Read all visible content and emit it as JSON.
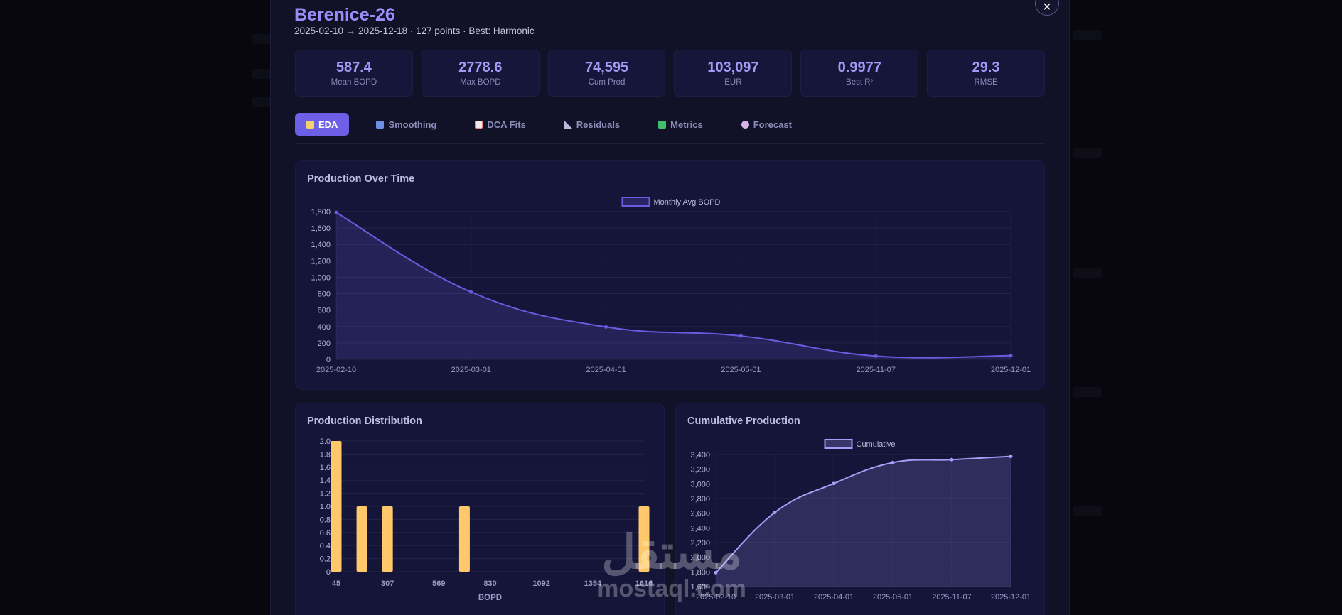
{
  "well": {
    "name": "Berenice-26",
    "summary": "2025-02-10 → 2025-12-18 · 127 points · Best: Harmonic"
  },
  "stats": [
    {
      "value": "587.4",
      "label": "Mean BOPD"
    },
    {
      "value": "2778.6",
      "label": "Max BOPD"
    },
    {
      "value": "74,595",
      "label": "Cum Prod"
    },
    {
      "value": "103,097",
      "label": "EUR"
    },
    {
      "value": "0.9977",
      "label": "Best R²"
    },
    {
      "value": "29.3",
      "label": "RMSE"
    }
  ],
  "tabs": [
    {
      "label": "EDA",
      "icon": "notepad-icon",
      "icon_color": "#f2d36b",
      "active": true
    },
    {
      "label": "Smoothing",
      "icon": "shuffle-icon",
      "icon_color": "#6f8ee8",
      "active": false
    },
    {
      "label": "DCA Fits",
      "icon": "chart-down-icon",
      "icon_color": "#e88a8a",
      "active": false
    },
    {
      "label": "Residuals",
      "icon": "triangle-ruler-icon",
      "icon_color": "#b9b9d9",
      "active": false
    },
    {
      "label": "Metrics",
      "icon": "checkmark-icon",
      "icon_color": "#3fbf6a",
      "active": false
    },
    {
      "label": "Forecast",
      "icon": "crystal-ball-icon",
      "icon_color": "#d7b3e8",
      "active": false
    }
  ],
  "colors": {
    "accent": "#6d5fe6",
    "line": "#6a5ce0",
    "cumulative_line": "#a99cf7",
    "bar": "#ffc96b"
  },
  "close_glyph": "×",
  "watermark": {
    "arabic": "مستقل",
    "latin": "mostaql.com"
  },
  "chart_data": [
    {
      "type": "area",
      "title": "Production Over Time",
      "legend": "Monthly Avg BOPD",
      "legend_position": "top-center",
      "x": [
        "2025-02-10",
        "2025-03-01",
        "2025-04-01",
        "2025-05-01",
        "2025-11-07",
        "2025-12-01"
      ],
      "series": [
        {
          "name": "Monthly Avg BOPD",
          "values": [
            1790,
            820,
            395,
            285,
            40,
            45
          ]
        }
      ],
      "ylim": [
        0,
        1800
      ],
      "yticks": [
        0,
        200,
        400,
        600,
        800,
        1000,
        1200,
        1400,
        1600,
        1800
      ],
      "grid": true
    },
    {
      "type": "bar",
      "title": "Production Distribution",
      "xlabel": "BOPD",
      "categories": [
        "45",
        "",
        "307",
        "",
        "569",
        "",
        "830",
        "",
        "1092",
        "",
        "1354",
        "",
        "1616"
      ],
      "values": [
        2,
        1,
        1,
        0,
        0,
        1,
        0,
        0,
        0,
        0,
        0,
        0,
        1
      ],
      "ylim": [
        0,
        2
      ],
      "yticks": [
        "0",
        "0.2",
        "0.4",
        "0.6",
        "0.8",
        "1.0",
        "1.2",
        "1.4",
        "1.6",
        "1.8",
        "2.0"
      ],
      "grid": true
    },
    {
      "type": "area",
      "title": "Cumulative Production",
      "legend": "Cumulative",
      "legend_position": "top-center",
      "x": [
        "2025-02-10",
        "2025-03-01",
        "2025-04-01",
        "2025-05-01",
        "2025-11-07",
        "2025-12-01"
      ],
      "series": [
        {
          "name": "Cumulative",
          "values": [
            1790,
            2610,
            3005,
            3290,
            3330,
            3375
          ]
        }
      ],
      "ylim": [
        1600,
        3400
      ],
      "yticks": [
        1600,
        1800,
        2000,
        2200,
        2400,
        2600,
        2800,
        3000,
        3200,
        3400
      ],
      "grid": true
    }
  ]
}
